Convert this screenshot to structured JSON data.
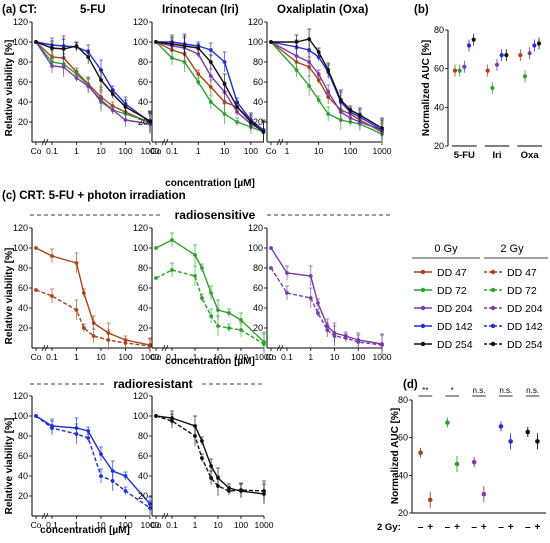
{
  "labels": {
    "panel_a": "(a) CT:",
    "panel_b": "(b)",
    "panel_c": "(c) CRT:  5-FU + photon irradiation",
    "panel_d": "(d)",
    "radiosensitive": "radiosensitive",
    "radioresistant": "radioresistant",
    "x_axis": "concentration [µM]",
    "y_viability": "Relative viability [%]",
    "y_auc": "Normalized AUC [%]",
    "gy_label": "2 Gy:",
    "minus": "–",
    "plus": "+"
  },
  "legend": {
    "col0_title": "0 Gy",
    "col2_title": "2 Gy",
    "items": [
      "DD 47",
      "DD 72",
      "DD 204",
      "DD 142",
      "DD 254"
    ]
  },
  "colors": {
    "DD 47": "#a8441c",
    "DD 72": "#2fa02f",
    "DD 204": "#7b3aa8",
    "DD 142": "#1f2fd0",
    "DD 254": "#111111"
  },
  "chart_data": [
    {
      "id": "a1",
      "type": "line",
      "title": "5-FU",
      "xlabel": "concentration [µM]",
      "ylabel": "Relative viability [%]",
      "x_scale": "log",
      "x_ticks": [
        "Co",
        "0.1",
        "1",
        "10",
        "100",
        "1000"
      ],
      "ylim": [
        0,
        120
      ],
      "x": [
        0,
        0.1,
        0.3,
        1,
        3,
        10,
        30,
        100,
        1000
      ],
      "series": [
        {
          "name": "DD 47",
          "values": [
            100,
            85,
            84,
            70,
            58,
            45,
            36,
            30,
            19
          ]
        },
        {
          "name": "DD 72",
          "values": [
            100,
            80,
            78,
            68,
            57,
            40,
            32,
            28,
            20
          ]
        },
        {
          "name": "DD 204",
          "values": [
            100,
            76,
            75,
            64,
            56,
            42,
            32,
            22,
            18
          ]
        },
        {
          "name": "DD 142",
          "values": [
            100,
            97,
            96,
            95,
            90,
            72,
            52,
            38,
            20
          ]
        },
        {
          "name": "DD 254",
          "values": [
            100,
            94,
            93,
            96,
            85,
            62,
            48,
            35,
            21
          ]
        }
      ]
    },
    {
      "id": "a2",
      "type": "line",
      "title": "Irinotecan (Iri)",
      "xlabel": "concentration [µM]",
      "ylabel": "",
      "x_scale": "log",
      "x_ticks": [
        "Co",
        "0.1",
        "1",
        "10",
        "100"
      ],
      "ylim": [
        0,
        120
      ],
      "x": [
        0,
        0.1,
        0.3,
        1,
        3,
        10,
        30,
        100,
        300
      ],
      "series": [
        {
          "name": "DD 47",
          "values": [
            100,
            92,
            88,
            68,
            55,
            40,
            35,
            22,
            12
          ]
        },
        {
          "name": "DD 72",
          "values": [
            100,
            84,
            80,
            60,
            40,
            28,
            20,
            15,
            10
          ]
        },
        {
          "name": "DD 204",
          "values": [
            100,
            96,
            94,
            88,
            66,
            50,
            30,
            18,
            11
          ]
        },
        {
          "name": "DD 142",
          "values": [
            100,
            100,
            98,
            96,
            92,
            80,
            40,
            22,
            12
          ]
        },
        {
          "name": "DD 254",
          "values": [
            100,
            98,
            96,
            94,
            80,
            58,
            35,
            20,
            10
          ]
        }
      ]
    },
    {
      "id": "a3",
      "type": "line",
      "title": "Oxaliplatin (Oxa)",
      "xlabel": "concentration [µM]",
      "ylabel": "",
      "x_scale": "log",
      "x_ticks": [
        "Co",
        "1",
        "10",
        "100",
        "1000"
      ],
      "ylim": [
        0,
        120
      ],
      "x": [
        0,
        2,
        5,
        10,
        20,
        50,
        100,
        200,
        1000
      ],
      "series": [
        {
          "name": "DD 47",
          "values": [
            100,
            80,
            75,
            62,
            45,
            32,
            28,
            22,
            10
          ]
        },
        {
          "name": "DD 72",
          "values": [
            100,
            72,
            56,
            42,
            28,
            22,
            20,
            18,
            8
          ]
        },
        {
          "name": "DD 204",
          "values": [
            100,
            86,
            80,
            68,
            50,
            30,
            24,
            20,
            12
          ]
        },
        {
          "name": "DD 142",
          "values": [
            100,
            95,
            92,
            85,
            70,
            40,
            30,
            25,
            12
          ]
        },
        {
          "name": "DD 254",
          "values": [
            100,
            100,
            103,
            90,
            72,
            42,
            32,
            27,
            14
          ]
        }
      ]
    },
    {
      "id": "b",
      "type": "scatter",
      "title": "",
      "xlabel": "",
      "ylabel": "Normalized AUC [%]",
      "categories": [
        "5-FU",
        "Iri",
        "Oxa"
      ],
      "ylim": [
        20,
        80
      ],
      "series": [
        {
          "name": "DD 47",
          "values": [
            59,
            59,
            67
          ]
        },
        {
          "name": "DD 72",
          "values": [
            59,
            50,
            56
          ]
        },
        {
          "name": "DD 204",
          "values": [
            61,
            62,
            68
          ]
        },
        {
          "name": "DD 142",
          "values": [
            72,
            67,
            72
          ]
        },
        {
          "name": "DD 254",
          "values": [
            75,
            67,
            73
          ]
        }
      ]
    },
    {
      "id": "c1",
      "type": "line",
      "title": "",
      "xlabel": "",
      "ylabel": "Relative viability [%]",
      "x_scale": "log",
      "x_ticks": [
        "Co",
        "0.1",
        "1",
        "10",
        "100",
        "1000"
      ],
      "ylim": [
        0,
        120
      ],
      "x": [
        0,
        0.1,
        1,
        2,
        5,
        20,
        100,
        1000
      ],
      "series": [
        {
          "name": "DD 47 0 Gy",
          "values": [
            100,
            92,
            85,
            55,
            25,
            15,
            8,
            3
          ]
        },
        {
          "name": "DD 47 2 Gy",
          "values": [
            58,
            52,
            38,
            20,
            12,
            8,
            5,
            2
          ]
        }
      ]
    },
    {
      "id": "c2",
      "type": "line",
      "title": "",
      "xlabel": "concentration [µM]",
      "ylabel": "",
      "x_scale": "log",
      "x_ticks": [
        "Co",
        "0.1",
        "1",
        "10",
        "100",
        "1000"
      ],
      "ylim": [
        0,
        120
      ],
      "x": [
        0,
        0.1,
        1,
        2,
        5,
        10,
        30,
        100,
        1000
      ],
      "series": [
        {
          "name": "DD 72 0 Gy",
          "values": [
            100,
            108,
            93,
            80,
            55,
            38,
            35,
            28,
            6
          ]
        },
        {
          "name": "DD 72 2 Gy",
          "values": [
            70,
            78,
            72,
            50,
            32,
            22,
            20,
            18,
            4
          ]
        }
      ]
    },
    {
      "id": "c3",
      "type": "line",
      "title": "",
      "xlabel": "",
      "ylabel": "",
      "x_scale": "log",
      "x_ticks": [
        "Co",
        "0.1",
        "1",
        "10",
        "100",
        "1000"
      ],
      "ylim": [
        0,
        120
      ],
      "x": [
        0,
        0.1,
        1,
        2,
        5,
        10,
        30,
        100,
        1000
      ],
      "series": [
        {
          "name": "DD 204 0 Gy",
          "values": [
            100,
            75,
            72,
            45,
            22,
            15,
            12,
            8,
            4
          ]
        },
        {
          "name": "DD 204 2 Gy",
          "values": [
            80,
            55,
            50,
            35,
            18,
            12,
            10,
            6,
            3
          ]
        }
      ]
    },
    {
      "id": "c4",
      "type": "line",
      "title": "",
      "xlabel": "concentration [µM]",
      "ylabel": "Relative viability [%]",
      "x_scale": "log",
      "x_ticks": [
        "Co",
        "0.1",
        "1",
        "10",
        "100",
        "1000"
      ],
      "ylim": [
        0,
        120
      ],
      "x": [
        0,
        0.1,
        1,
        3,
        10,
        30,
        100,
        1000
      ],
      "series": [
        {
          "name": "DD 142 0 Gy",
          "values": [
            100,
            90,
            88,
            85,
            62,
            45,
            40,
            12
          ]
        },
        {
          "name": "DD 142 2 Gy",
          "values": [
            100,
            88,
            82,
            78,
            40,
            35,
            25,
            8
          ]
        }
      ]
    },
    {
      "id": "c5",
      "type": "line",
      "title": "",
      "xlabel": "concentration [µM]",
      "ylabel": "",
      "x_scale": "log",
      "x_ticks": [
        "Co",
        "0.1",
        "1",
        "10",
        "100",
        "1000"
      ],
      "ylim": [
        0,
        120
      ],
      "x": [
        0,
        0.1,
        1,
        2,
        5,
        10,
        30,
        100,
        1000
      ],
      "series": [
        {
          "name": "DD 254 0 Gy",
          "values": [
            100,
            98,
            90,
            75,
            50,
            38,
            28,
            25,
            22
          ]
        },
        {
          "name": "DD 254 2 Gy",
          "values": [
            100,
            95,
            80,
            58,
            38,
            30,
            25,
            26,
            25
          ]
        }
      ]
    },
    {
      "id": "d",
      "type": "scatter",
      "title": "",
      "xlabel": "",
      "ylabel": "Normalized AUC [%]",
      "ylim": [
        20,
        80
      ],
      "groups": [
        {
          "name": "DD 47",
          "values": [
            52,
            27
          ],
          "significance": "**"
        },
        {
          "name": "DD 72",
          "values": [
            68,
            46
          ],
          "significance": "*"
        },
        {
          "name": "DD 204",
          "values": [
            47,
            30
          ],
          "significance": "n.s."
        },
        {
          "name": "DD 142",
          "values": [
            66,
            58
          ],
          "significance": "n.s."
        },
        {
          "name": "DD 254",
          "values": [
            63,
            58
          ],
          "significance": "n.s."
        }
      ]
    }
  ]
}
